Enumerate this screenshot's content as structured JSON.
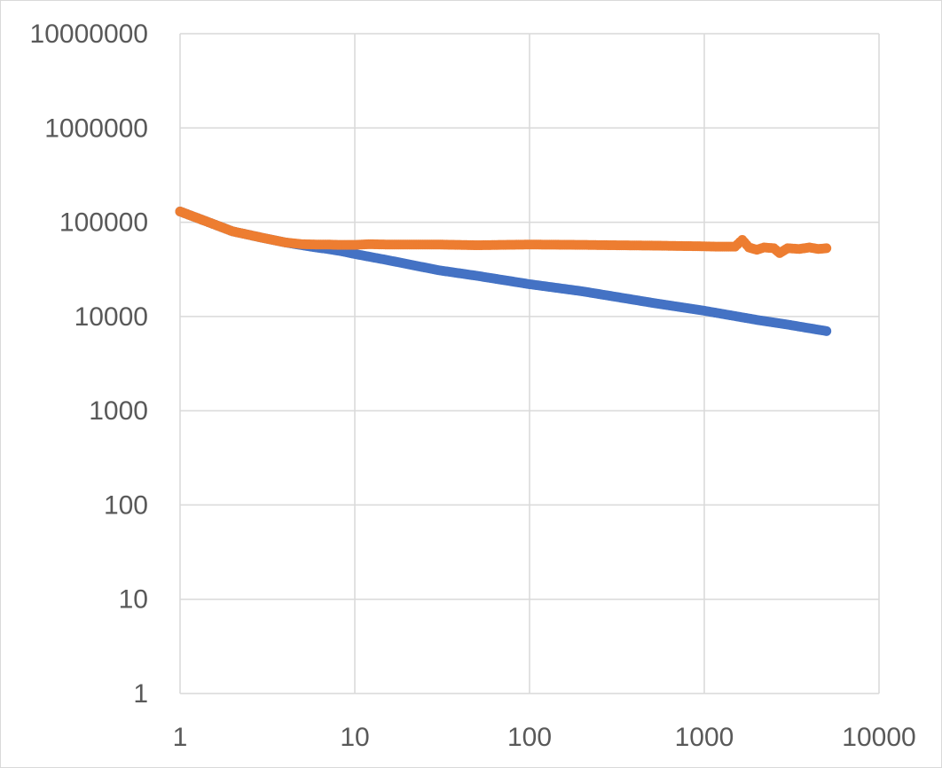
{
  "chart_data": {
    "type": "scatter",
    "title": "",
    "xlabel": "",
    "ylabel": "",
    "x_scale": "log",
    "y_scale": "log",
    "xlim": [
      1,
      10000
    ],
    "ylim": [
      1,
      10000000
    ],
    "x_ticks": [
      1,
      10,
      100,
      1000,
      10000
    ],
    "y_ticks": [
      1,
      10,
      100,
      1000,
      10000,
      100000,
      1000000,
      10000000
    ],
    "x_tick_labels": [
      "1",
      "10",
      "100",
      "1000",
      "10000"
    ],
    "y_tick_labels": [
      "1",
      "10",
      "100",
      "1000",
      "10000",
      "100000",
      "1000000",
      "10000000"
    ],
    "grid": true,
    "legend": "none",
    "series": [
      {
        "color": "#4472C4",
        "x": [
          1,
          2,
          3,
          4,
          5,
          6,
          7,
          8,
          9,
          10,
          15,
          20,
          30,
          50,
          100,
          200,
          500,
          1000,
          2000,
          3000,
          4000,
          5000
        ],
        "y": [
          130000,
          80000,
          68000,
          61000,
          57000,
          54000,
          52000,
          50000,
          48000,
          46000,
          40000,
          36000,
          31000,
          27000,
          22000,
          18500,
          14000,
          11500,
          9200,
          8200,
          7500,
          7000
        ]
      },
      {
        "color": "#ED7D31",
        "x": [
          1,
          2,
          3,
          4,
          5,
          6,
          7,
          8,
          9,
          10,
          12,
          15,
          20,
          30,
          50,
          100,
          200,
          300,
          500,
          700,
          1000,
          1200,
          1500,
          1650,
          1800,
          2000,
          2200,
          2500,
          2700,
          3000,
          3500,
          4000,
          4500,
          5000
        ],
        "y": [
          130000,
          80000,
          68000,
          61000,
          58500,
          58000,
          58000,
          57500,
          57500,
          57500,
          58500,
          58000,
          58000,
          58000,
          57000,
          58000,
          57500,
          57000,
          56500,
          56000,
          55500,
          55000,
          55000,
          65000,
          54000,
          51000,
          54000,
          53000,
          47000,
          53000,
          52000,
          54000,
          52000,
          53000
        ]
      }
    ]
  }
}
